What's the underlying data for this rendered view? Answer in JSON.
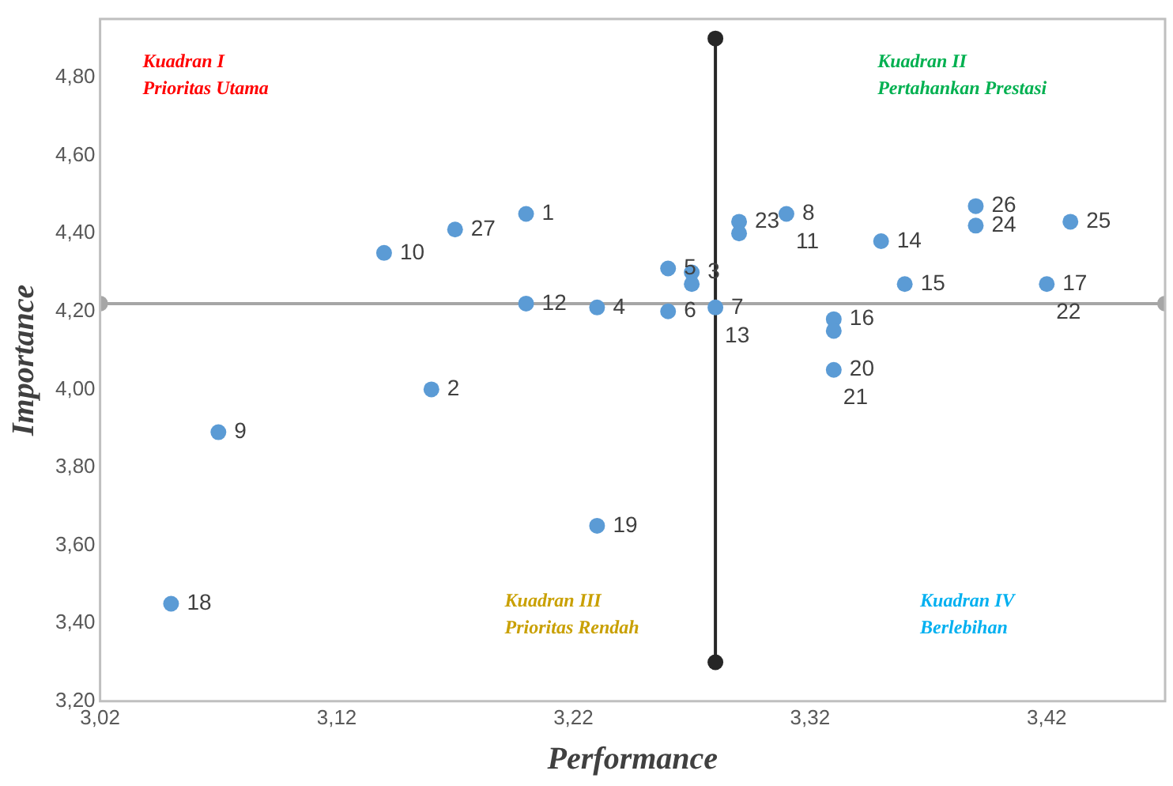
{
  "chart_data": {
    "type": "scatter",
    "xlabel": "Performance",
    "ylabel": "Importance",
    "x": [
      3.2,
      3.16,
      3.27,
      3.23,
      3.26,
      3.26,
      3.28,
      3.31,
      3.07,
      3.14,
      3.2,
      3.35,
      3.36,
      3.33,
      3.42,
      3.05,
      3.23,
      3.33,
      3.29,
      3.39,
      3.43,
      3.39,
      3.17,
      3.27,
      3.29,
      3.33
    ],
    "series": [
      {
        "color": "#5b9bd5",
        "values": [
          4.45,
          4.0,
          4.3,
          4.21,
          4.31,
          4.2,
          4.21,
          4.45,
          3.89,
          4.35,
          4.22,
          4.38,
          4.27,
          4.18,
          4.27,
          3.45,
          3.65,
          4.05,
          4.43,
          4.42,
          4.43,
          4.47,
          4.41,
          4.27,
          4.4,
          4.15
        ]
      },
      {
        "type": "line",
        "color": "#a6a6a6",
        "x": [
          3.02,
          3.47
        ],
        "values": [
          4.22,
          4.22
        ]
      },
      {
        "type": "line",
        "color": "#262626",
        "x": [
          3.28,
          3.28
        ],
        "values": [
          3.3,
          4.9
        ]
      }
    ],
    "marker": "circle",
    "grid": false,
    "legend": false,
    "xlim": [
      3.02,
      3.47
    ],
    "ylim": [
      3.2,
      4.95
    ],
    "xticks": [
      {
        "value": 3.02,
        "label": "3,02"
      },
      {
        "value": 3.12,
        "label": "3,12"
      },
      {
        "value": 3.22,
        "label": "3,22"
      },
      {
        "value": 3.32,
        "label": "3,32"
      },
      {
        "value": 3.42,
        "label": "3,42"
      }
    ],
    "yticks": [
      {
        "value": 3.2,
        "label": "3,20"
      },
      {
        "value": 3.4,
        "label": "3,40"
      },
      {
        "value": 3.6,
        "label": "3,60"
      },
      {
        "value": 3.8,
        "label": "3,80"
      },
      {
        "value": 4.0,
        "label": "4,00"
      },
      {
        "value": 4.2,
        "label": "4,20"
      },
      {
        "value": 4.4,
        "label": "4,40"
      },
      {
        "value": 4.6,
        "label": "4,60"
      },
      {
        "value": 4.8,
        "label": "4,80"
      }
    ],
    "annotations": [
      "Kuadran I\nPrioritas Utama",
      "Kuadran II\nPertahankan Prestasi",
      "Kuadran III\nPrioritas Rendah",
      "Kuadran IV\nBerlebihan",
      {
        "text": "1",
        "x": 3.2,
        "y": 4.45
      },
      {
        "text": "2",
        "x": 3.16,
        "y": 4.0
      },
      {
        "text": "3",
        "x": 3.27,
        "y": 4.3
      },
      {
        "text": "4",
        "x": 3.23,
        "y": 4.21
      },
      {
        "text": "5",
        "x": 3.26,
        "y": 4.31
      },
      {
        "text": "6",
        "x": 3.26,
        "y": 4.2
      },
      {
        "text": "7",
        "x": 3.28,
        "y": 4.21
      },
      {
        "text": "8",
        "x": 3.31,
        "y": 4.45
      },
      {
        "text": "9",
        "x": 3.07,
        "y": 3.89
      },
      {
        "text": "10",
        "x": 3.14,
        "y": 4.35
      },
      {
        "text": "11",
        "x": 3.31,
        "y": 4.45
      },
      {
        "text": "12",
        "x": 3.2,
        "y": 4.22
      },
      {
        "text": "13",
        "x": 3.28,
        "y": 4.21
      },
      {
        "text": "14",
        "x": 3.35,
        "y": 4.38
      },
      {
        "text": "15",
        "x": 3.36,
        "y": 4.27
      },
      {
        "text": "16",
        "x": 3.33,
        "y": 4.18
      },
      {
        "text": "17",
        "x": 3.42,
        "y": 4.27
      },
      {
        "text": "18",
        "x": 3.05,
        "y": 3.45
      },
      {
        "text": "19",
        "x": 3.23,
        "y": 3.65
      },
      {
        "text": "20",
        "x": 3.33,
        "y": 4.05
      },
      {
        "text": "21",
        "x": 3.33,
        "y": 4.05
      },
      {
        "text": "22",
        "x": 3.42,
        "y": 4.27
      },
      {
        "text": "23",
        "x": 3.29,
        "y": 4.43
      },
      {
        "text": "24",
        "x": 3.39,
        "y": 4.42
      },
      {
        "text": "25",
        "x": 3.43,
        "y": 4.43
      },
      {
        "text": "26",
        "x": 3.39,
        "y": 4.47
      },
      {
        "text": "27",
        "x": 3.17,
        "y": 4.41
      }
    ]
  }
}
